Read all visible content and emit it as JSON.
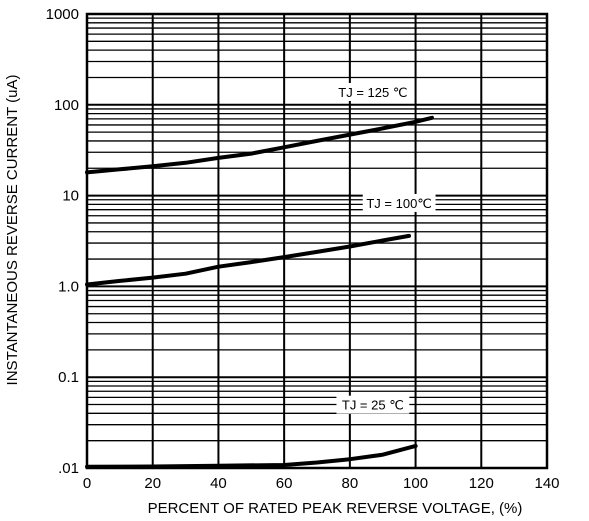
{
  "chart_data": {
    "type": "line",
    "title": "",
    "xlabel": "PERCENT OF RATED PEAK REVERSE VOLTAGE, (%)",
    "ylabel": "INSTANTANEOUS REVERSE CURRENT (uA)",
    "xlim": [
      0,
      140
    ],
    "ylim": [
      0.01,
      1000
    ],
    "yscale": "log",
    "grid": true,
    "x_ticks": [
      "0",
      "20",
      "40",
      "60",
      "80",
      "100",
      "120",
      "140"
    ],
    "y_ticks": [
      ".01",
      "0.1",
      "1.0",
      "10",
      "100",
      "1000"
    ],
    "series": [
      {
        "name": "TJ = 125 ℃",
        "x": [
          0,
          10,
          20,
          30,
          40,
          50,
          60,
          70,
          80,
          90,
          100,
          105
        ],
        "y": [
          18,
          19.5,
          21,
          23,
          26,
          29,
          34,
          40,
          47,
          55,
          65,
          72
        ]
      },
      {
        "name": "TJ = 100℃",
        "x": [
          0,
          10,
          20,
          30,
          40,
          50,
          60,
          70,
          80,
          90,
          98
        ],
        "y": [
          1.05,
          1.15,
          1.25,
          1.38,
          1.65,
          1.85,
          2.1,
          2.4,
          2.75,
          3.2,
          3.6
        ]
      },
      {
        "name": "TJ = 25 ℃",
        "x": [
          0,
          20,
          40,
          60,
          70,
          80,
          90,
          100
        ],
        "y": [
          0.0103,
          0.0104,
          0.0106,
          0.0108,
          0.0115,
          0.0125,
          0.014,
          0.0175
        ]
      }
    ]
  }
}
